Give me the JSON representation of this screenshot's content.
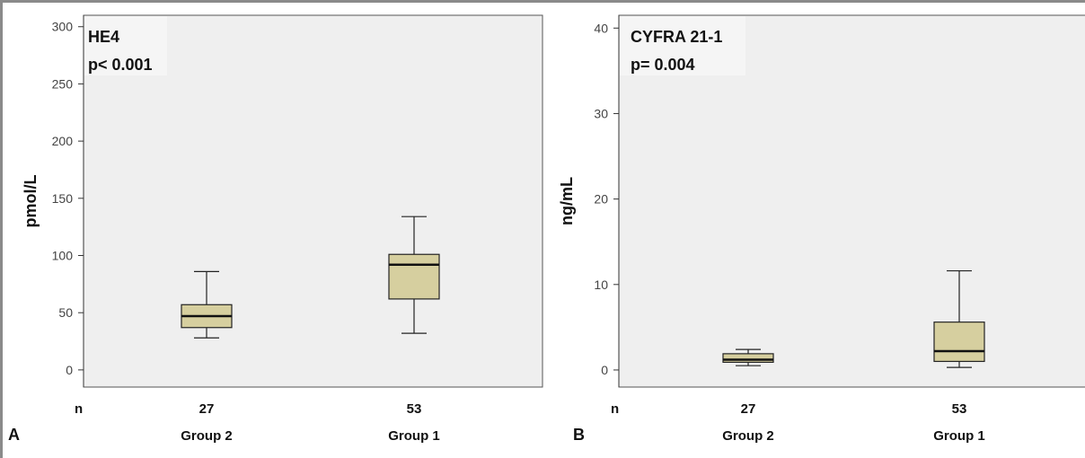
{
  "colors": {
    "box_fill": "#d6cf9f",
    "plot_bg": "#efefef"
  },
  "chart_data": [
    {
      "type": "box",
      "panel_label": "A",
      "title": "HE4",
      "subtitle": "p< 0.001",
      "ylabel": "pmol/L",
      "ylim": [
        -15,
        310
      ],
      "yticks": [
        0,
        50,
        100,
        150,
        200,
        250,
        300
      ],
      "n_label": "n",
      "categories": [
        "Group 2",
        "Group 1"
      ],
      "n_values": [
        "27",
        "53"
      ],
      "boxes": [
        {
          "min": 28,
          "q1": 37,
          "median": 47,
          "q3": 57,
          "max": 86
        },
        {
          "min": 32,
          "q1": 62,
          "median": 92,
          "q3": 101,
          "max": 134
        }
      ]
    },
    {
      "type": "box",
      "panel_label": "B",
      "title": "CYFRA 21-1",
      "subtitle": "p= 0.004",
      "ylabel": "ng/mL",
      "ylim": [
        -2,
        41.5
      ],
      "yticks": [
        0,
        10,
        20,
        30,
        40
      ],
      "n_label": "n",
      "categories": [
        "Group 2",
        "Group 1"
      ],
      "n_values": [
        "27",
        "53"
      ],
      "boxes": [
        {
          "min": 0.5,
          "q1": 0.9,
          "median": 1.2,
          "q3": 1.9,
          "max": 2.4
        },
        {
          "min": 0.3,
          "q1": 1.0,
          "median": 2.2,
          "q3": 5.6,
          "max": 11.6
        }
      ]
    }
  ]
}
